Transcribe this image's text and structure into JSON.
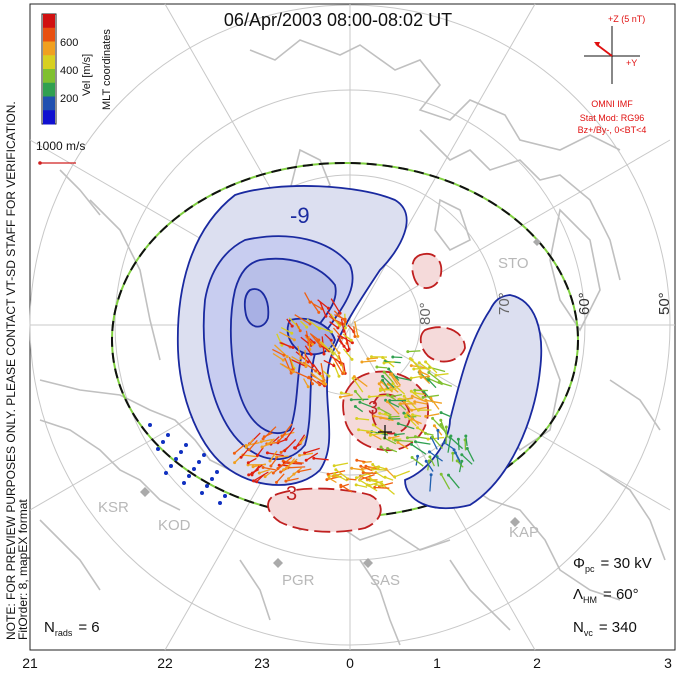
{
  "title": "06/Apr/2003 08:00-08:02 UT",
  "colorbar": {
    "unit_label": "Vel [m/s]",
    "coord_label": "MLT coordinates",
    "ticks": [
      "600",
      "400",
      "200"
    ],
    "colors": [
      "#d01010",
      "#e85010",
      "#f0a020",
      "#d8d020",
      "#80c030",
      "#30a050",
      "#2050b0",
      "#1010d0"
    ]
  },
  "scale_vector": {
    "label": "1000 m/s",
    "color": "#d02020"
  },
  "imf": {
    "z_label": "+Z (5 nT)",
    "y_label": "+Y",
    "source": "OMNI IMF",
    "model": "Stat Mod: RG96",
    "condition": "Bz+/By-, 0<BT<4",
    "color": "#e01010"
  },
  "side_note": {
    "line1": "NOTE: FOR PREVIEW PURPOSES ONLY. PLEASE CONTACT VT-SD STAFF FOR VERIFICATION.",
    "line2": "FitOrder: 8, mapEX format"
  },
  "latitude_labels": [
    "80°",
    "70°",
    "60°",
    "50°"
  ],
  "stations": [
    "STO",
    "KSR",
    "KOD",
    "PGR",
    "SAS",
    "KAP"
  ],
  "contours": {
    "negative_label": "-9",
    "positive_label_1": "3",
    "positive_label_2": "3"
  },
  "stats": {
    "phi_pc_label": "Φ",
    "phi_pc_sub": "pc",
    "phi_pc_value": "= 30 kV",
    "lambda_hm_label": "Λ",
    "lambda_hm_sub": "HM",
    "lambda_hm_value": "= 60°",
    "n_vc_label": "N",
    "n_vc_sub": "vc",
    "n_vc_value": "= 340",
    "n_rads_label": "N",
    "n_rads_sub": "rads",
    "n_rads_value": "= 6"
  },
  "mlt_axis": [
    "21",
    "22",
    "23",
    "0",
    "1",
    "2",
    "3"
  ],
  "colors": {
    "contour": "#1a2aa0",
    "negative_fill": "#b8bfe8",
    "negative_fill_light": "#dcdff0",
    "positive_contour": "#c02020",
    "positive_fill": "#f5dada",
    "grid": "#c8c8c8",
    "coast": "#c0c0c0",
    "boundary_green": "#80d040"
  }
}
